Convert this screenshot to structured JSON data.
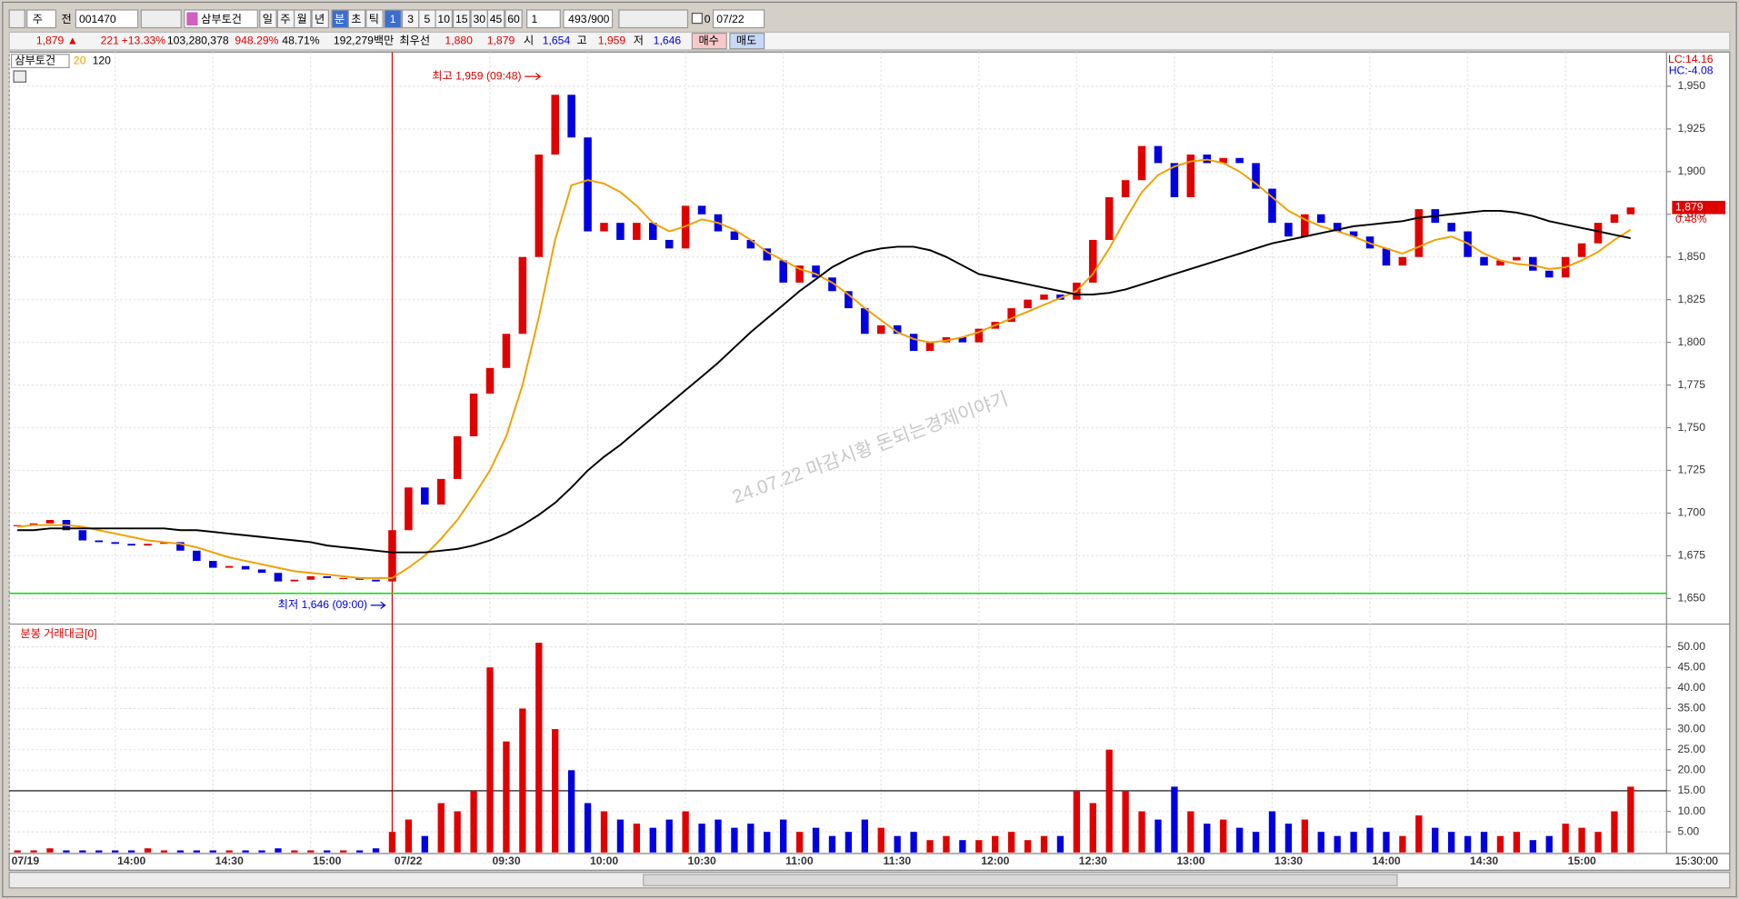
{
  "toolbar": {
    "market": "주",
    "mode": "전",
    "code": "001470",
    "name": "삼부토건",
    "periods": [
      "일",
      "주",
      "월",
      "년",
      "분",
      "초",
      "틱"
    ],
    "intervals": [
      "1",
      "3",
      "5",
      "10",
      "15",
      "30",
      "45",
      "60"
    ],
    "interval_select": "1",
    "count": "493",
    "max": "/900",
    "offset": "0",
    "date": "07/22"
  },
  "info_bar": {
    "price": "1,879 ▲",
    "change": "221",
    "change_pct": "+13.33%",
    "volume": "103,280,378",
    "volume_ratio": "948.29%",
    "rate": "48.71%",
    "amount": "192,279백만",
    "best_label": "최우선",
    "ask": "1,880",
    "bid": "1,879",
    "open_label": "시",
    "open": "1,654",
    "high_label": "고",
    "high": "1,959",
    "low_label": "저",
    "low": "1,646",
    "buy": "매수",
    "sell": "매도"
  },
  "watermark": "24.07.22 마감시황  돈되는경제이야기",
  "chart_data": [
    {
      "type": "candlestick",
      "title": "삼부토건",
      "categories": [
        "07/19 13:30",
        "07/19 13:35",
        "07/19 13:40",
        "07/19 13:45",
        "07/19 13:50",
        "07/19 13:55",
        "07/19 14:00",
        "07/19 14:05",
        "07/19 14:10",
        "07/19 14:15",
        "07/19 14:20",
        "07/19 14:25",
        "07/19 14:30",
        "07/19 14:35",
        "07/19 14:40",
        "07/19 14:45",
        "07/19 14:50",
        "07/19 14:55",
        "07/19 15:00",
        "07/19 15:05",
        "07/19 15:10",
        "07/19 15:15",
        "07/19 15:20",
        "07/22 09:00",
        "07/22 09:05",
        "07/22 09:10",
        "07/22 09:15",
        "07/22 09:20",
        "07/22 09:25",
        "07/22 09:30",
        "07/22 09:35",
        "07/22 09:40",
        "07/22 09:45",
        "07/22 09:50",
        "07/22 09:55",
        "07/22 10:00",
        "07/22 10:05",
        "07/22 10:10",
        "07/22 10:15",
        "07/22 10:20",
        "07/22 10:25",
        "07/22 10:30",
        "07/22 10:35",
        "07/22 10:40",
        "07/22 10:45",
        "07/22 10:50",
        "07/22 10:55",
        "07/22 11:00",
        "07/22 11:05",
        "07/22 11:10",
        "07/22 11:15",
        "07/22 11:20",
        "07/22 11:25",
        "07/22 11:30",
        "07/22 11:35",
        "07/22 11:40",
        "07/22 11:45",
        "07/22 11:50",
        "07/22 11:55",
        "07/22 12:00",
        "07/22 12:05",
        "07/22 12:10",
        "07/22 12:15",
        "07/22 12:20",
        "07/22 12:25",
        "07/22 12:30",
        "07/22 12:35",
        "07/22 12:40",
        "07/22 12:45",
        "07/22 12:50",
        "07/22 12:55",
        "07/22 13:00",
        "07/22 13:05",
        "07/22 13:10",
        "07/22 13:15",
        "07/22 13:20",
        "07/22 13:25",
        "07/22 13:30",
        "07/22 13:35",
        "07/22 13:40",
        "07/22 13:45",
        "07/22 13:50",
        "07/22 13:55",
        "07/22 14:00",
        "07/22 14:05",
        "07/22 14:10",
        "07/22 14:15",
        "07/22 14:20",
        "07/22 14:25",
        "07/22 14:30",
        "07/22 14:35",
        "07/22 14:40",
        "07/22 14:45",
        "07/22 14:50",
        "07/22 14:55",
        "07/22 15:00",
        "07/22 15:05",
        "07/22 15:10",
        "07/22 15:15",
        "07/22 15:20"
      ],
      "values": [
        1693,
        1694,
        1696,
        1690,
        1684,
        1683,
        1682,
        1681,
        1682,
        1683,
        1678,
        1672,
        1668,
        1669,
        1667,
        1665,
        1660,
        1661,
        1663,
        1662,
        1662,
        1661,
        1660,
        1690,
        1715,
        1705,
        1720,
        1745,
        1770,
        1785,
        1805,
        1850,
        1910,
        1945,
        1920,
        1865,
        1870,
        1860,
        1870,
        1860,
        1855,
        1880,
        1875,
        1865,
        1860,
        1855,
        1848,
        1835,
        1845,
        1838,
        1830,
        1820,
        1805,
        1810,
        1805,
        1795,
        1800,
        1803,
        1800,
        1808,
        1812,
        1820,
        1825,
        1828,
        1825,
        1835,
        1860,
        1885,
        1895,
        1915,
        1905,
        1885,
        1910,
        1905,
        1908,
        1905,
        1890,
        1870,
        1862,
        1875,
        1870,
        1865,
        1862,
        1855,
        1845,
        1850,
        1878,
        1870,
        1865,
        1850,
        1845,
        1848,
        1850,
        1842,
        1838,
        1850,
        1858,
        1870,
        1875,
        1879
      ],
      "up_color": "#e00000",
      "down_color": "#0000e0",
      "series": [
        {
          "name": "20",
          "color": "#f0a000",
          "values": [
            1692,
            1693,
            1693,
            1693,
            1692,
            1690,
            1688,
            1686,
            1684,
            1683,
            1682,
            1680,
            1677,
            1674,
            1672,
            1670,
            1668,
            1666,
            1665,
            1664,
            1663,
            1662,
            1662,
            1662,
            1668,
            1675,
            1685,
            1696,
            1710,
            1725,
            1745,
            1775,
            1815,
            1860,
            1892,
            1895,
            1893,
            1888,
            1880,
            1870,
            1865,
            1868,
            1872,
            1870,
            1866,
            1860,
            1853,
            1848,
            1843,
            1840,
            1835,
            1828,
            1820,
            1813,
            1806,
            1802,
            1800,
            1801,
            1803,
            1806,
            1810,
            1814,
            1818,
            1822,
            1826,
            1830,
            1840,
            1855,
            1872,
            1888,
            1898,
            1903,
            1906,
            1907,
            1905,
            1900,
            1893,
            1885,
            1877,
            1872,
            1868,
            1865,
            1862,
            1858,
            1855,
            1852,
            1856,
            1860,
            1862,
            1858,
            1852,
            1848,
            1846,
            1845,
            1843,
            1844,
            1848,
            1853,
            1860,
            1866
          ]
        },
        {
          "name": "120",
          "color": "#000000",
          "values": [
            1690,
            1690,
            1691,
            1691,
            1691,
            1691,
            1691,
            1691,
            1691,
            1691,
            1690,
            1690,
            1689,
            1688,
            1687,
            1686,
            1685,
            1684,
            1683,
            1681,
            1680,
            1679,
            1678,
            1677,
            1677,
            1677,
            1678,
            1679,
            1681,
            1684,
            1688,
            1693,
            1699,
            1706,
            1715,
            1725,
            1733,
            1740,
            1748,
            1756,
            1764,
            1772,
            1780,
            1788,
            1797,
            1806,
            1814,
            1822,
            1830,
            1837,
            1844,
            1849,
            1853,
            1855,
            1856,
            1856,
            1854,
            1850,
            1845,
            1840,
            1838,
            1836,
            1834,
            1832,
            1830,
            1828,
            1828,
            1829,
            1831,
            1834,
            1837,
            1840,
            1843,
            1846,
            1849,
            1852,
            1855,
            1858,
            1860,
            1862,
            1864,
            1866,
            1868,
            1869,
            1870,
            1871,
            1873,
            1874,
            1875,
            1876,
            1877,
            1877,
            1876,
            1874,
            1871,
            1869,
            1867,
            1865,
            1863,
            1861
          ]
        }
      ],
      "ylim": [
        1635,
        1970
      ],
      "yticks": [
        {
          "value": 1650,
          "label": "1,650"
        },
        {
          "value": 1675,
          "label": "1,675"
        },
        {
          "value": 1700,
          "label": "1,700"
        },
        {
          "value": 1725,
          "label": "1,725"
        },
        {
          "value": 1750,
          "label": "1,750"
        },
        {
          "value": 1775,
          "label": "1,775"
        },
        {
          "value": 1800,
          "label": "1,800"
        },
        {
          "value": 1825,
          "label": "1,825"
        },
        {
          "value": 1850,
          "label": "1,850"
        },
        {
          "value": 1875,
          "label": "1,875"
        },
        {
          "value": 1900,
          "label": "1,900"
        },
        {
          "value": 1925,
          "label": "1,925"
        },
        {
          "value": 1950,
          "label": "1,950"
        }
      ],
      "grid": true,
      "hline": {
        "value": 1653,
        "color": "#00dd00"
      },
      "last": {
        "value": 1879,
        "label": "1,879",
        "change": "0.48%"
      },
      "scale_info": [
        "LC:14.16",
        "HC:-4.08"
      ],
      "annotations": [
        {
          "text": "최고 1,959 (09:48)",
          "color": "#e00000"
        },
        {
          "text": "최저 1,646 (09:00)",
          "color": "#0000e0"
        }
      ]
    },
    {
      "type": "bar",
      "title": "분봉 거래대금[0]",
      "values": [
        0.5,
        0.5,
        1,
        0.5,
        0.5,
        0.5,
        0.5,
        0.5,
        1,
        0.5,
        0.5,
        0.5,
        0.5,
        0.5,
        0.5,
        0.5,
        1,
        0.5,
        0.5,
        0.5,
        0.5,
        0.5,
        1,
        5,
        8,
        4,
        12,
        10,
        15,
        45,
        27,
        35,
        51,
        30,
        20,
        12,
        10,
        8,
        7,
        6,
        8,
        10,
        7,
        8,
        6,
        7,
        5,
        8,
        5,
        6,
        4,
        5,
        8,
        6,
        4,
        5,
        3,
        4,
        3,
        3,
        4,
        5,
        3,
        4,
        4,
        15,
        12,
        25,
        15,
        10,
        8,
        16,
        10,
        7,
        8,
        6,
        5,
        10,
        7,
        8,
        5,
        4,
        5,
        6,
        5,
        4,
        9,
        6,
        5,
        4,
        5,
        4,
        5,
        3,
        4,
        7,
        6,
        5,
        10,
        16
      ],
      "ylim": [
        0,
        55
      ],
      "yticks": [
        {
          "value": 5,
          "label": "5.00"
        },
        {
          "value": 10,
          "label": "10.00"
        },
        {
          "value": 15,
          "label": "15.00"
        },
        {
          "value": 20,
          "label": "20.00"
        },
        {
          "value": 25,
          "label": "25.00"
        },
        {
          "value": 30,
          "label": "30.00"
        },
        {
          "value": 35,
          "label": "35.00"
        },
        {
          "value": 40,
          "label": "40.00"
        },
        {
          "value": 45,
          "label": "45.00"
        },
        {
          "value": 50,
          "label": "50.00"
        }
      ],
      "hline": {
        "value": 15,
        "color": "#000000"
      },
      "day_line_color": "#e00000",
      "xticks": [
        {
          "value": "07/19 13:30",
          "label": "07/19"
        },
        {
          "value": "07/19 14:00",
          "label": "14:00"
        },
        {
          "value": "07/19 14:30",
          "label": "14:30"
        },
        {
          "value": "07/19 15:00",
          "label": "15:00"
        },
        {
          "value": "07/22 09:00",
          "label": "07/22"
        },
        {
          "value": "07/22 09:30",
          "label": "09:30"
        },
        {
          "value": "07/22 10:00",
          "label": "10:00"
        },
        {
          "value": "07/22 10:30",
          "label": "10:30"
        },
        {
          "value": "07/22 11:00",
          "label": "11:00"
        },
        {
          "value": "07/22 11:30",
          "label": "11:30"
        },
        {
          "value": "07/22 12:00",
          "label": "12:00"
        },
        {
          "value": "07/22 12:30",
          "label": "12:30"
        },
        {
          "value": "07/22 13:00",
          "label": "13:00"
        },
        {
          "value": "07/22 13:30",
          "label": "13:30"
        },
        {
          "value": "07/22 14:00",
          "label": "14:00"
        },
        {
          "value": "07/22 14:30",
          "label": "14:30"
        },
        {
          "value": "07/22 15:00",
          "label": "15:00"
        }
      ],
      "end_time": "15:30:00"
    }
  ]
}
